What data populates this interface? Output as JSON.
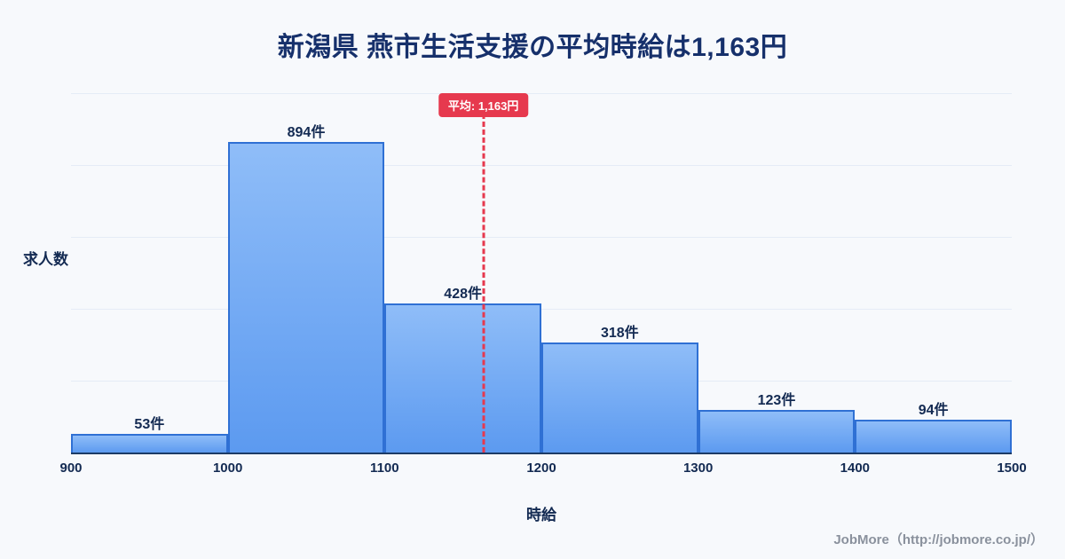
{
  "footer": "JobMore（http://jobmore.co.jp/）",
  "colors": {
    "background": "#f7f9fc",
    "title_text": "#16306b",
    "bar_fill_top": "#8fbdf8",
    "bar_fill_bottom": "#5c9af0",
    "bar_border": "#2f70d4",
    "average_line": "#e6394e",
    "badge_background": "#e6394e",
    "badge_text": "#ffffff",
    "axis_line": "#1c3b66",
    "gridline": "#e5ecf6",
    "label_text": "#132a52",
    "footer_text": "#8a919d"
  },
  "chart_data": {
    "type": "bar",
    "subtype": "histogram",
    "title": "新潟県 燕市生活支援の平均時給は1,163円",
    "xlabel": "時給",
    "ylabel": "求人数",
    "xlim": [
      900,
      1500
    ],
    "bin_edges": [
      900,
      1000,
      1100,
      1200,
      1300,
      1400,
      1500
    ],
    "bin_labels": [
      "900",
      "1000",
      "1100",
      "1200",
      "1300",
      "1400",
      "1500"
    ],
    "values": [
      53,
      894,
      428,
      318,
      123,
      94
    ],
    "value_labels": [
      "53件",
      "894件",
      "428件",
      "318件",
      "123件",
      "94件"
    ],
    "average": 1163,
    "average_label": "平均: 1,163円",
    "grid": "horizontal",
    "legend": "none"
  }
}
